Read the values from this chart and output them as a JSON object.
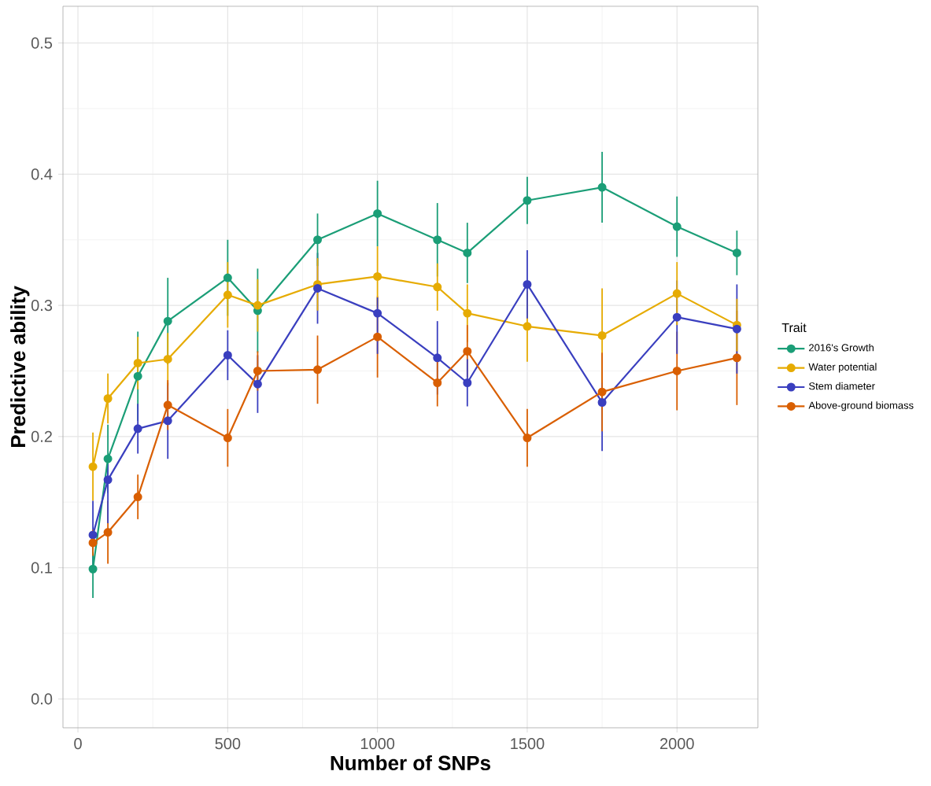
{
  "chart_data": {
    "type": "line",
    "xlabel": "Number of SNPs",
    "ylabel": "Predictive ability",
    "legend_title": "Trait",
    "x": [
      50,
      100,
      200,
      300,
      500,
      600,
      800,
      1000,
      1200,
      1300,
      1500,
      1750,
      2000,
      2200
    ],
    "series": [
      {
        "name": "2016's Growth",
        "color": "#1b9e77",
        "values": [
          0.099,
          0.183,
          0.246,
          0.288,
          0.321,
          0.296,
          0.35,
          0.37,
          0.35,
          0.34,
          0.38,
          0.39,
          0.36,
          0.34
        ],
        "errors": [
          0.022,
          0.026,
          0.034,
          0.033,
          0.029,
          0.032,
          0.02,
          0.025,
          0.028,
          0.023,
          0.018,
          0.027,
          0.023,
          0.017
        ]
      },
      {
        "name": "Water potential",
        "color": "#e6ab02",
        "values": [
          0.177,
          0.229,
          0.256,
          0.259,
          0.308,
          0.3,
          0.316,
          0.322,
          0.314,
          0.294,
          0.284,
          0.277,
          0.309,
          0.285
        ],
        "errors": [
          0.026,
          0.019,
          0.02,
          0.02,
          0.025,
          0.02,
          0.02,
          0.023,
          0.018,
          0.022,
          0.027,
          0.036,
          0.024,
          0.02
        ]
      },
      {
        "name": "Stem diameter",
        "color": "#3a3fbf",
        "values": [
          0.125,
          0.167,
          0.206,
          0.212,
          0.262,
          0.24,
          0.313,
          0.294,
          0.26,
          0.241,
          0.316,
          0.226,
          0.291,
          0.282
        ],
        "errors": [
          0.026,
          [
            0.134,
            0.179
          ],
          0.019,
          0.029,
          0.019,
          0.022,
          0.027,
          [
            0.263,
            0.306
          ],
          0.028,
          0.018,
          0.026,
          0.037,
          0.028,
          0.034
        ]
      },
      {
        "name": "Above-ground biomass",
        "color": "#d95f02",
        "values": [
          0.119,
          0.127,
          0.154,
          0.224,
          0.199,
          0.25,
          0.251,
          0.276,
          0.241,
          0.265,
          0.199,
          0.234,
          0.25,
          0.26
        ],
        "errors": [
          0.01,
          0.024,
          0.017,
          0.019,
          0.022,
          0.015,
          0.026,
          0.031,
          0.018,
          0.02,
          0.022,
          0.03,
          0.03,
          0.036
        ]
      }
    ],
    "xlim": [
      -50,
      2270
    ],
    "ylim": [
      -0.022,
      0.528
    ],
    "xticks": [
      0,
      500,
      1000,
      1500,
      2000
    ],
    "yticks": [
      {
        "value": 0,
        "label": "0.0"
      },
      {
        "value": 0.1,
        "label": "0.1"
      },
      {
        "value": 0.2,
        "label": "0.2"
      },
      {
        "value": 0.3,
        "label": "0.3"
      },
      {
        "value": 0.4,
        "label": "0.4"
      },
      {
        "value": 0.5,
        "label": "0.5"
      }
    ],
    "grid": true,
    "legend": "right",
    "marker": "circle",
    "line_style": "solid"
  }
}
